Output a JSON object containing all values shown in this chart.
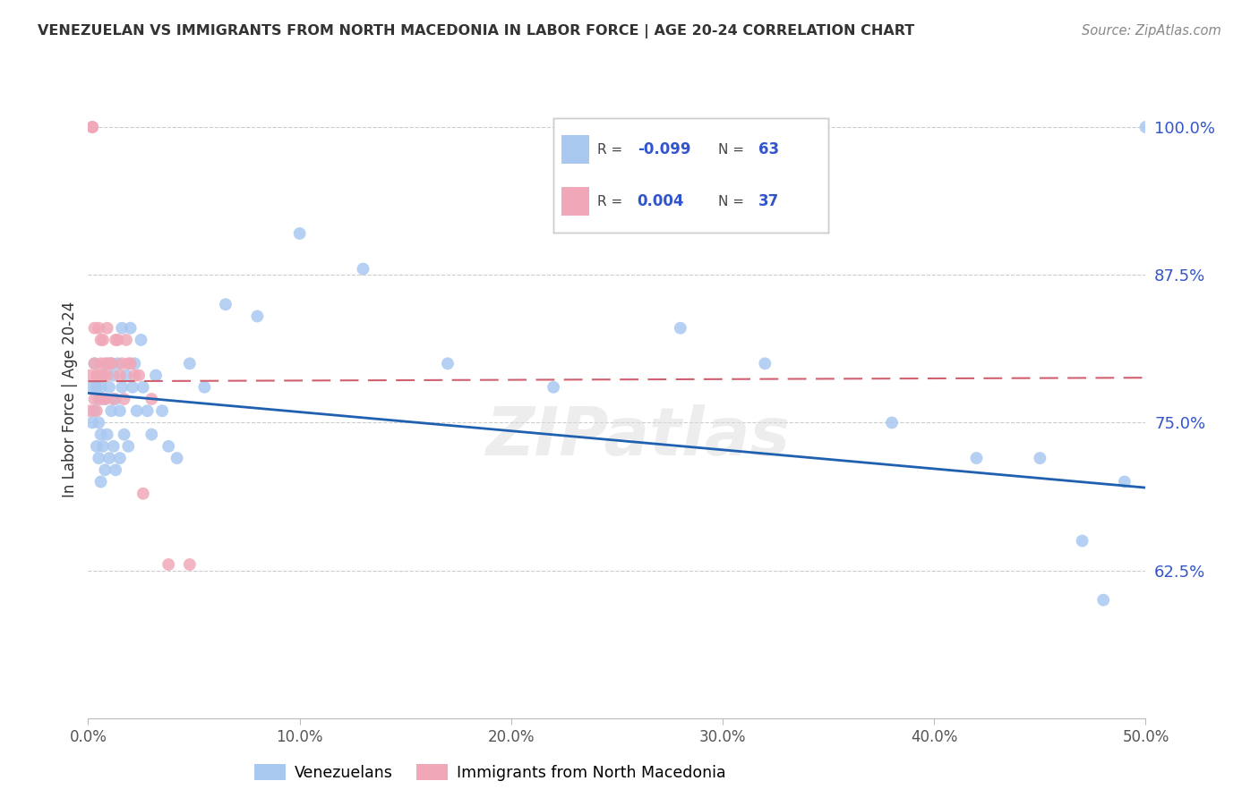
{
  "title": "VENEZUELAN VS IMMIGRANTS FROM NORTH MACEDONIA IN LABOR FORCE | AGE 20-24 CORRELATION CHART",
  "source": "Source: ZipAtlas.com",
  "ylabel": "In Labor Force | Age 20-24",
  "xlim": [
    0.0,
    0.5
  ],
  "ylim": [
    0.5,
    1.04
  ],
  "yticks": [
    0.625,
    0.75,
    0.875,
    1.0
  ],
  "ytick_labels": [
    "62.5%",
    "75.0%",
    "87.5%",
    "100.0%"
  ],
  "xticks": [
    0.0,
    0.1,
    0.2,
    0.3,
    0.4,
    0.5
  ],
  "xtick_labels": [
    "0.0%",
    "10.0%",
    "20.0%",
    "30.0%",
    "40.0%",
    "50.0%"
  ],
  "legend_r_blue": "-0.099",
  "legend_n_blue": "63",
  "legend_r_pink": "0.004",
  "legend_n_pink": "37",
  "blue_color": "#a8c8f0",
  "pink_color": "#f0a8b8",
  "blue_line_color": "#2060b0",
  "pink_line_color": "#d06070",
  "watermark": "ZIPatlas",
  "blue_trend_x0": 0.0,
  "blue_trend_y0": 0.775,
  "blue_trend_x1": 0.5,
  "blue_trend_y1": 0.695,
  "pink_trend_x0": 0.0,
  "pink_trend_y0": 0.785,
  "pink_trend_x1": 0.5,
  "pink_trend_y1": 0.788,
  "venezuelans_x": [
    0.002,
    0.002,
    0.003,
    0.003,
    0.004,
    0.004,
    0.005,
    0.005,
    0.005,
    0.006,
    0.006,
    0.006,
    0.007,
    0.007,
    0.008,
    0.008,
    0.009,
    0.009,
    0.01,
    0.01,
    0.011,
    0.011,
    0.012,
    0.012,
    0.013,
    0.013,
    0.014,
    0.015,
    0.015,
    0.016,
    0.016,
    0.017,
    0.018,
    0.019,
    0.02,
    0.021,
    0.022,
    0.023,
    0.025,
    0.026,
    0.028,
    0.03,
    0.032,
    0.035,
    0.038,
    0.042,
    0.048,
    0.055,
    0.065,
    0.08,
    0.1,
    0.13,
    0.17,
    0.22,
    0.28,
    0.32,
    0.38,
    0.42,
    0.45,
    0.47,
    0.48,
    0.49,
    0.5
  ],
  "venezuelans_y": [
    0.78,
    0.75,
    0.8,
    0.76,
    0.78,
    0.73,
    0.77,
    0.75,
    0.72,
    0.78,
    0.74,
    0.7,
    0.79,
    0.73,
    0.77,
    0.71,
    0.8,
    0.74,
    0.78,
    0.72,
    0.8,
    0.76,
    0.79,
    0.73,
    0.77,
    0.71,
    0.8,
    0.76,
    0.72,
    0.83,
    0.78,
    0.74,
    0.79,
    0.73,
    0.83,
    0.78,
    0.8,
    0.76,
    0.82,
    0.78,
    0.76,
    0.74,
    0.79,
    0.76,
    0.73,
    0.72,
    0.8,
    0.78,
    0.85,
    0.84,
    0.91,
    0.88,
    0.8,
    0.78,
    0.83,
    0.8,
    0.75,
    0.72,
    0.72,
    0.65,
    0.6,
    0.7,
    1.0
  ],
  "macedonia_x": [
    0.001,
    0.001,
    0.002,
    0.002,
    0.003,
    0.003,
    0.003,
    0.004,
    0.004,
    0.005,
    0.005,
    0.006,
    0.006,
    0.006,
    0.007,
    0.007,
    0.008,
    0.008,
    0.009,
    0.009,
    0.01,
    0.011,
    0.012,
    0.013,
    0.014,
    0.015,
    0.016,
    0.017,
    0.018,
    0.019,
    0.02,
    0.022,
    0.024,
    0.026,
    0.03,
    0.038,
    0.048
  ],
  "macedonia_y": [
    0.79,
    0.76,
    1.0,
    1.0,
    0.83,
    0.8,
    0.77,
    0.79,
    0.76,
    0.83,
    0.79,
    0.82,
    0.8,
    0.77,
    0.82,
    0.79,
    0.8,
    0.77,
    0.83,
    0.79,
    0.8,
    0.8,
    0.77,
    0.82,
    0.82,
    0.79,
    0.8,
    0.77,
    0.82,
    0.8,
    0.8,
    0.79,
    0.79,
    0.69,
    0.77,
    0.63,
    0.63
  ]
}
